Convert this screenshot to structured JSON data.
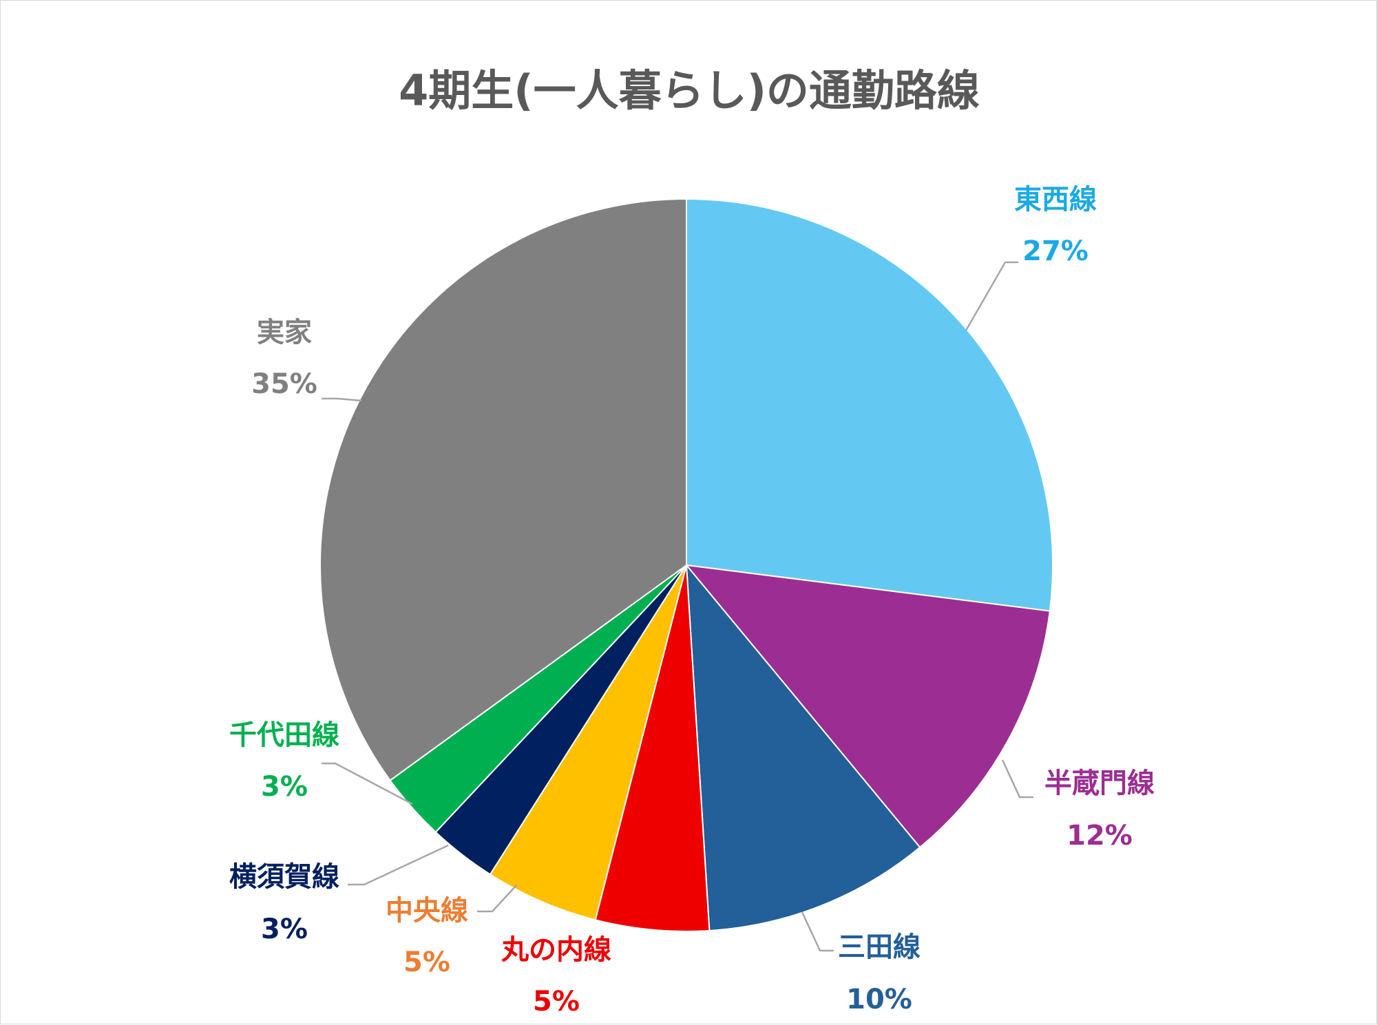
{
  "chart_data": {
    "type": "pie",
    "title": "4期生(一人暮らし)の通勤路線",
    "slices": [
      {
        "label": "東西線",
        "value": 27,
        "value_label": "27%",
        "color": "#63c9f2",
        "text_color": "#1aa9e6"
      },
      {
        "label": "半蔵門線",
        "value": 12,
        "value_label": "12%",
        "color": "#9c2d92",
        "text_color": "#9c2d92"
      },
      {
        "label": "三田線",
        "value": 10,
        "value_label": "10%",
        "color": "#235f99",
        "text_color": "#235f99"
      },
      {
        "label": "丸の内線",
        "value": 5,
        "value_label": "5%",
        "color": "#ee0000",
        "text_color": "#ee0000"
      },
      {
        "label": "中央線",
        "value": 5,
        "value_label": "5%",
        "color": "#ffc000",
        "text_color": "#ed7d31"
      },
      {
        "label": "横須賀線",
        "value": 3,
        "value_label": "3%",
        "color": "#002060",
        "text_color": "#002060"
      },
      {
        "label": "千代田線",
        "value": 3,
        "value_label": "3%",
        "color": "#00b050",
        "text_color": "#00b050"
      },
      {
        "label": "実家",
        "value": 35,
        "value_label": "35%",
        "color": "#808080",
        "text_color": "#808080"
      }
    ],
    "leader_line_color": "#a6a6a6"
  }
}
